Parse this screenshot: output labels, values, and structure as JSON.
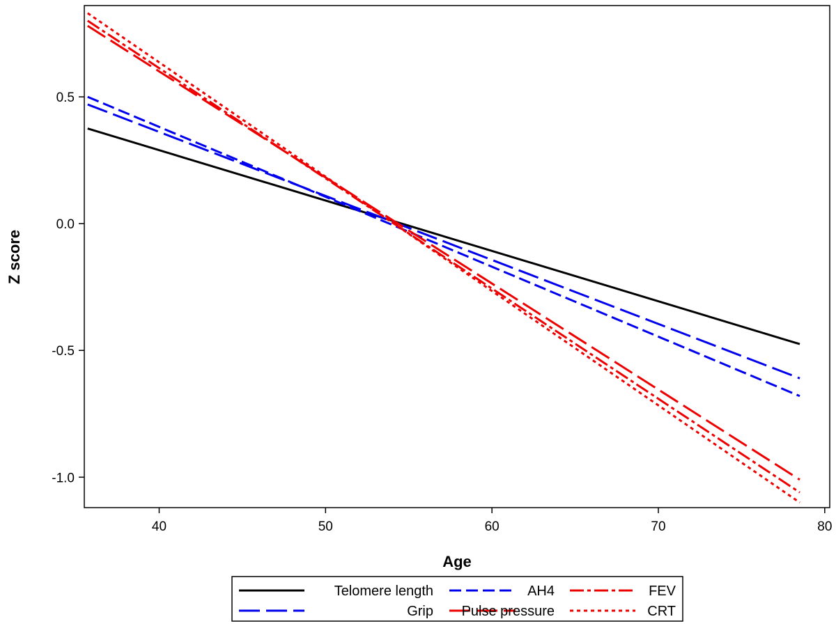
{
  "chart_data": {
    "type": "line",
    "xlabel": "Age",
    "ylabel": "Z score",
    "xlim": [
      35.5,
      80.3
    ],
    "ylim": [
      -1.12,
      0.86
    ],
    "xticks": [
      40,
      50,
      60,
      70,
      80
    ],
    "yticks": [
      -1.0,
      -0.5,
      0.0,
      0.5
    ],
    "ytick_labels": [
      "-1.0",
      "-0.5",
      "0.0",
      "0.5"
    ],
    "grid": false,
    "legend_placement": "bottom",
    "series": [
      {
        "name": "Telomere length",
        "color": "#000000",
        "dash": "solid",
        "x": [
          35.7,
          78.5
        ],
        "y": [
          0.375,
          -0.475
        ]
      },
      {
        "name": "Grip",
        "color": "#0000ee",
        "dash": "long-dash",
        "x": [
          35.7,
          78.5
        ],
        "y": [
          0.47,
          -0.61
        ]
      },
      {
        "name": "AH4",
        "color": "#0000ee",
        "dash": "dash",
        "x": [
          35.7,
          78.5
        ],
        "y": [
          0.5,
          -0.68
        ]
      },
      {
        "name": "Pulse pressure",
        "color": "#ee0000",
        "dash": "long-dash",
        "x": [
          35.7,
          78.5
        ],
        "y": [
          0.78,
          -1.01
        ]
      },
      {
        "name": "FEV",
        "color": "#ee0000",
        "dash": "dash-dot",
        "x": [
          35.7,
          78.5
        ],
        "y": [
          0.8,
          -1.06
        ]
      },
      {
        "name": "CRT",
        "color": "#ee0000",
        "dash": "dot",
        "x": [
          35.7,
          78.5
        ],
        "y": [
          0.83,
          -1.1
        ]
      }
    ],
    "legend_order": [
      "Telomere length",
      "Grip",
      "AH4",
      "Pulse pressure",
      "FEV",
      "CRT"
    ]
  }
}
